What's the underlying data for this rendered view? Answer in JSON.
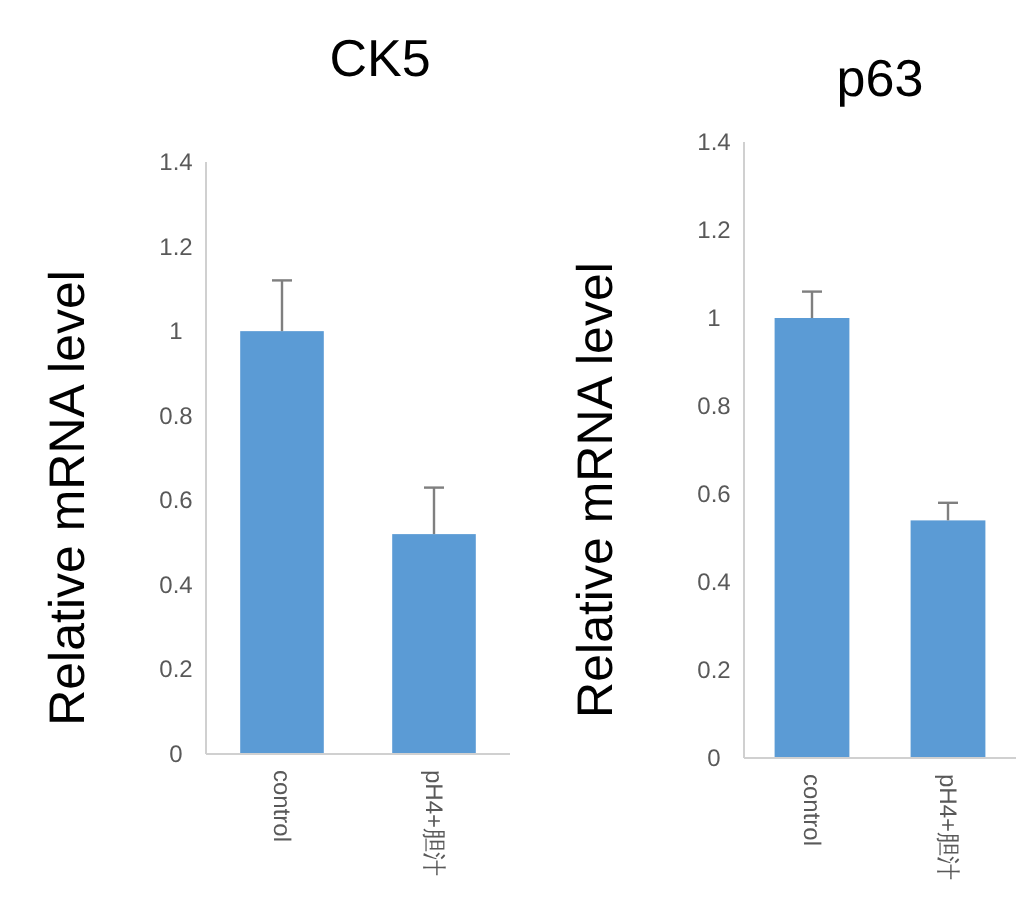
{
  "chart_data": [
    {
      "type": "bar",
      "title": "CK5",
      "ylabel": "Relative mRNA level",
      "categories": [
        "control",
        "pH4+胆汁"
      ],
      "values": [
        1.0,
        0.52
      ],
      "errors": [
        [
          1.0,
          1.12
        ],
        [
          0.52,
          0.63
        ]
      ],
      "color": "#5b9bd5",
      "ylim": [
        0,
        1.4
      ],
      "yticks": [
        0,
        0.2,
        0.4,
        0.6,
        0.8,
        1,
        1.2,
        1.4
      ]
    },
    {
      "type": "bar",
      "title": "p63",
      "ylabel": "Relative mRNA level",
      "categories": [
        "control",
        "pH4+胆汁"
      ],
      "values": [
        1.0,
        0.54
      ],
      "errors": [
        [
          1.0,
          1.06
        ],
        [
          0.54,
          0.58
        ]
      ],
      "color": "#5b9bd5",
      "ylim": [
        0,
        1.4
      ],
      "yticks": [
        0,
        0.2,
        0.4,
        0.6,
        0.8,
        1,
        1.2,
        1.4
      ]
    }
  ]
}
